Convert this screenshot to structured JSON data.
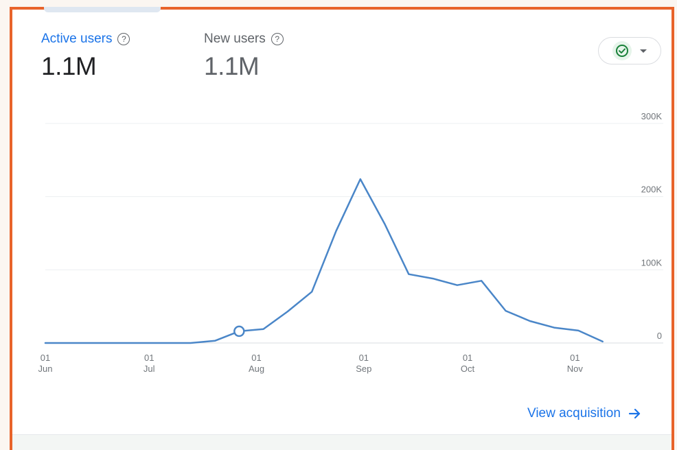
{
  "metrics": {
    "active_users": {
      "label": "Active users",
      "value": "1.1M"
    },
    "new_users": {
      "label": "New users",
      "value": "1.1M"
    }
  },
  "compare_button": {
    "icon": "check-circle-icon",
    "caret": "caret-down-icon",
    "accent": "#188038"
  },
  "view_link": {
    "label": "View acquisition",
    "icon": "arrow-right-icon"
  },
  "colors": {
    "accent": "#1a73e8",
    "line": "#4a86c8",
    "frame": "#e8632a"
  },
  "chart_data": {
    "type": "line",
    "title": "",
    "xlabel": "",
    "ylabel": "",
    "ylim": [
      0,
      300000
    ],
    "grid": true,
    "y_ticks": [
      {
        "value": 300000,
        "label": "300K"
      },
      {
        "value": 200000,
        "label": "200K"
      },
      {
        "value": 100000,
        "label": "100K"
      },
      {
        "value": 0,
        "label": "0"
      }
    ],
    "x_ticks": [
      {
        "date": "2023-06-01",
        "day": "01",
        "month": "Jun"
      },
      {
        "date": "2023-07-01",
        "day": "01",
        "month": "Jul"
      },
      {
        "date": "2023-08-01",
        "day": "01",
        "month": "Aug"
      },
      {
        "date": "2023-09-01",
        "day": "01",
        "month": "Sep"
      },
      {
        "date": "2023-10-01",
        "day": "01",
        "month": "Oct"
      },
      {
        "date": "2023-11-01",
        "day": "01",
        "month": "Nov"
      }
    ],
    "x_range": [
      "2023-06-01",
      "2023-11-17"
    ],
    "highlight_date": "2023-07-27",
    "series": [
      {
        "points": [
          {
            "x": "2023-06-01",
            "y": 0
          },
          {
            "x": "2023-06-08",
            "y": 0
          },
          {
            "x": "2023-06-15",
            "y": 0
          },
          {
            "x": "2023-06-22",
            "y": 0
          },
          {
            "x": "2023-06-29",
            "y": 0
          },
          {
            "x": "2023-07-06",
            "y": 0
          },
          {
            "x": "2023-07-13",
            "y": 0
          },
          {
            "x": "2023-07-20",
            "y": 3000
          },
          {
            "x": "2023-07-27",
            "y": 16000
          },
          {
            "x": "2023-08-03",
            "y": 19000
          },
          {
            "x": "2023-08-10",
            "y": 43000
          },
          {
            "x": "2023-08-17",
            "y": 70000
          },
          {
            "x": "2023-08-24",
            "y": 153000
          },
          {
            "x": "2023-08-31",
            "y": 224000
          },
          {
            "x": "2023-09-07",
            "y": 163000
          },
          {
            "x": "2023-09-14",
            "y": 94000
          },
          {
            "x": "2023-09-21",
            "y": 88000
          },
          {
            "x": "2023-09-28",
            "y": 79000
          },
          {
            "x": "2023-10-05",
            "y": 85000
          },
          {
            "x": "2023-10-12",
            "y": 44000
          },
          {
            "x": "2023-10-19",
            "y": 30000
          },
          {
            "x": "2023-10-26",
            "y": 21000
          },
          {
            "x": "2023-11-02",
            "y": 17000
          },
          {
            "x": "2023-11-09",
            "y": 2000
          }
        ]
      }
    ]
  }
}
